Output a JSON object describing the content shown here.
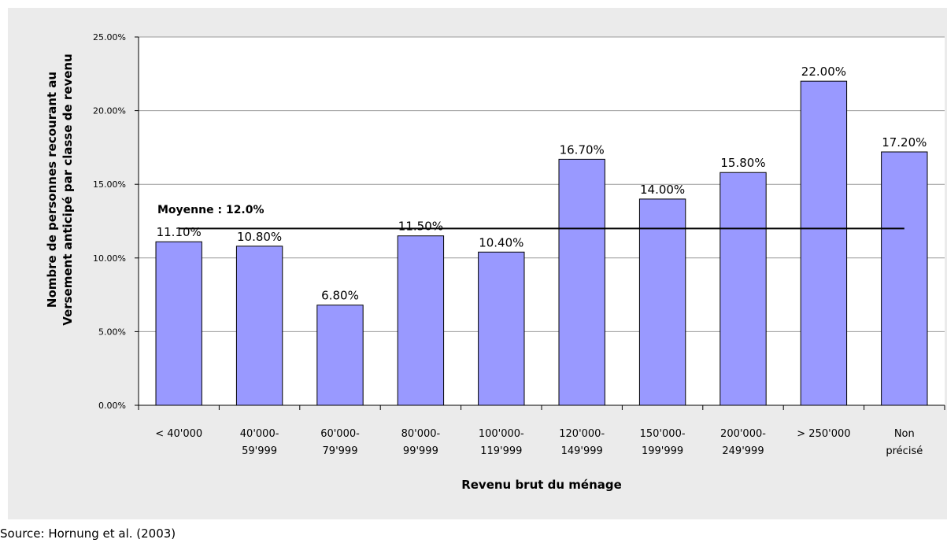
{
  "chart_data": {
    "type": "bar",
    "categories": [
      "< 40'000",
      "40'000-\n59'999",
      "60'000-\n79'999",
      "80'000-\n99'999",
      "100'000-\n119'999",
      "120'000-\n149'999",
      "150'000-\n199'999",
      "200'000-\n249'999",
      "> 250'000",
      "Non\nprécisé"
    ],
    "values": [
      11.1,
      10.8,
      6.8,
      11.5,
      10.4,
      16.7,
      14.0,
      15.8,
      22.0,
      17.2
    ],
    "value_labels": [
      "11.10%",
      "10.80%",
      "6.80%",
      "11.50%",
      "10.40%",
      "16.70%",
      "14.00%",
      "15.80%",
      "22.00%",
      "17.20%"
    ],
    "color": "#9999ff",
    "ylim": [
      0,
      25
    ],
    "yticks": [
      {
        "value": 0,
        "label": "0.00%"
      },
      {
        "value": 5,
        "label": "5.00%"
      },
      {
        "value": 10,
        "label": "10.00%"
      },
      {
        "value": 15,
        "label": "15.00%"
      },
      {
        "value": 20,
        "label": "20.00%"
      },
      {
        "value": 25,
        "label": "25.00%"
      }
    ],
    "grid": true,
    "x_label": "Revenu brut du ménage",
    "y_label": "Nombre de personnes recourant au\nVersement anticipé par classe de revenu",
    "mean": {
      "value": 12.0,
      "label": "Moyenne : 12.0%"
    },
    "source": "Source: Hornung et al. (2003)"
  }
}
